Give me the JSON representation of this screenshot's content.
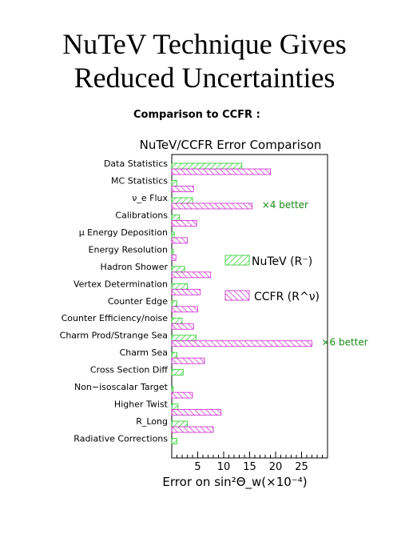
{
  "slide": {
    "title_line1": "NuTeV Technique Gives",
    "title_line2": "Reduced Uncertainties",
    "subtitle": "Comparison to CCFR :"
  },
  "colors": {
    "nutev": "#22cc22",
    "ccfr": "#cc22cc",
    "annotation": "#1a8a1a",
    "frame": "#000000"
  },
  "chart_data": {
    "type": "bar",
    "orientation": "horizontal",
    "title": "NuTeV/CCFR Error Comparison",
    "xlabel": "Error on sin²Θ_w(×10⁻⁴)",
    "xlim": [
      0,
      30
    ],
    "xticks": [
      5,
      10,
      15,
      20,
      25
    ],
    "categories": [
      "Data Statistics",
      "MC Statistics",
      "ν_e Flux",
      "Calibrations",
      "μ Energy Deposition",
      "Energy Resolution",
      "Hadron Shower",
      "Vertex Determination",
      "Counter Edge",
      "Counter Efficiency/noise",
      "Charm Prod/Strange Sea",
      "Charm Sea",
      "Cross Section Diff",
      "Non−isoscalar Target",
      "Higher Twist",
      "R_Long",
      "Radiative Corrections"
    ],
    "series": [
      {
        "name": "NuTeV (R⁻)",
        "values": [
          13.5,
          1.0,
          4.0,
          1.5,
          0.5,
          0.3,
          2.5,
          3.0,
          1.0,
          2.0,
          4.7,
          1.0,
          2.2,
          0.3,
          1.2,
          3.0,
          1.0
        ]
      },
      {
        "name": "CCFR (R^ν)",
        "values": [
          19.0,
          4.2,
          15.5,
          4.8,
          3.0,
          0.8,
          7.5,
          5.5,
          5.0,
          4.2,
          27.0,
          6.3,
          0.0,
          4.0,
          9.5,
          8.0,
          0.0
        ]
      }
    ],
    "annotations": [
      {
        "text": "×4 better",
        "category": "ν_e Flux"
      },
      {
        "text": "×6 better",
        "category": "Charm Prod/Strange Sea"
      }
    ],
    "legend_position": "right-middle"
  }
}
